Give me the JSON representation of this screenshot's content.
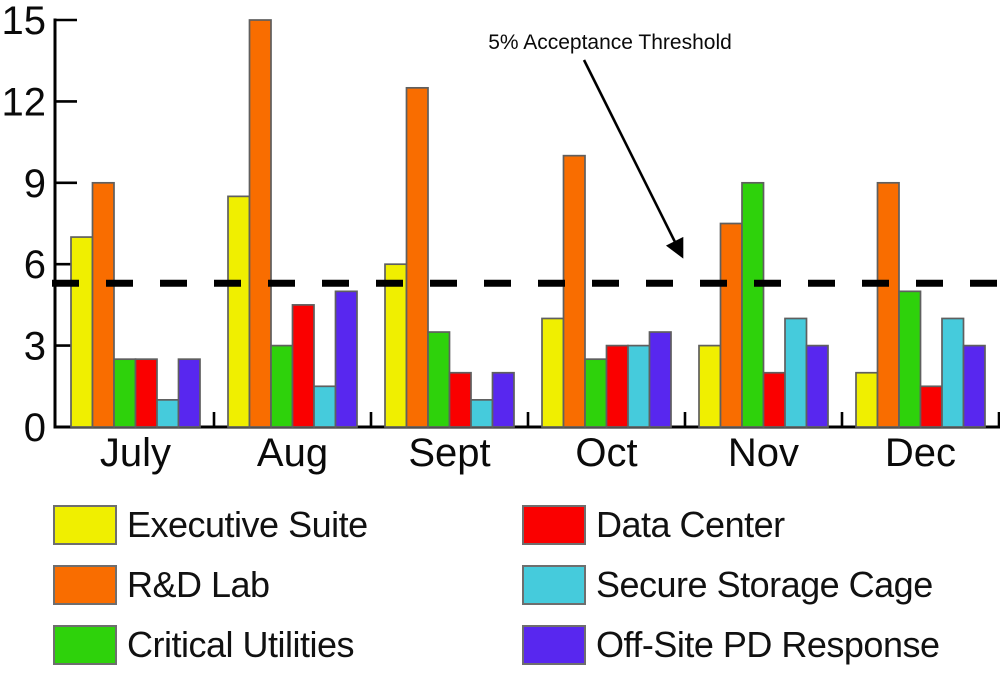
{
  "chart_data": {
    "type": "bar",
    "title": "",
    "xlabel": "",
    "ylabel": "",
    "categories": [
      "July",
      "Aug",
      "Sept",
      "Oct",
      "Nov",
      "Dec"
    ],
    "series": [
      {
        "name": "Executive Suite",
        "color": "#F0EF00",
        "values": [
          7,
          8.5,
          6,
          4,
          3,
          2
        ]
      },
      {
        "name": "R&D Lab",
        "color": "#F96D00",
        "values": [
          9,
          15,
          12.5,
          10,
          7.5,
          9
        ]
      },
      {
        "name": "Critical Utilities",
        "color": "#2ED20B",
        "values": [
          2.5,
          3,
          3.5,
          2.5,
          9,
          5
        ]
      },
      {
        "name": "Data Center",
        "color": "#FA0000",
        "values": [
          2.5,
          4.5,
          2,
          3,
          2,
          1.5
        ]
      },
      {
        "name": "Secure Storage Cage",
        "color": "#45CBDC",
        "values": [
          1,
          1.5,
          1,
          3,
          4,
          4
        ]
      },
      {
        "name": "Off-Site PD Response",
        "color": "#5827EF",
        "values": [
          2.5,
          5,
          2,
          3.5,
          3,
          3
        ]
      }
    ],
    "ylim": [
      0,
      15
    ],
    "yticks": [
      0,
      3,
      6,
      9,
      12,
      15
    ],
    "grid": false,
    "legend_position": "bottom",
    "threshold": {
      "value": 5.3,
      "label": "5% Acceptance Threshold",
      "style": "dashed"
    }
  },
  "colors": {
    "axis": "#000000",
    "threshold_line": "#000000",
    "bar_outline": "#5f5f5f",
    "text": "#0a0a0a"
  }
}
